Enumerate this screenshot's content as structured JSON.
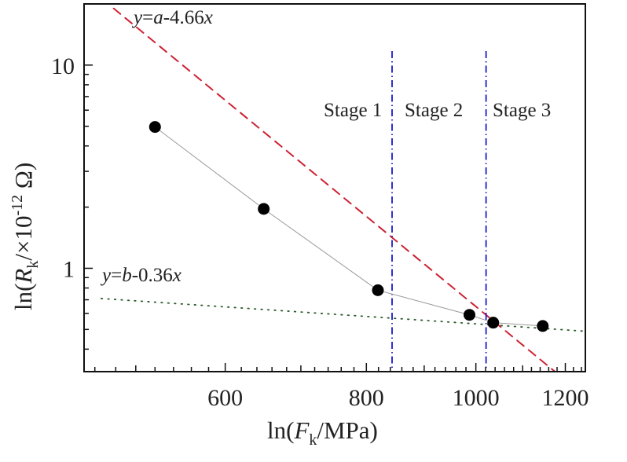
{
  "chart_data": {
    "type": "scatter",
    "title": "",
    "xlabel": "ln(F_k/MPa)",
    "xlabel_parts": {
      "pre": "ln(",
      "var": "F",
      "sub": "k",
      "post": "/MPa)"
    },
    "ylabel": "ln(R_k/×10^-12 Ω)",
    "ylabel_parts": {
      "pre": "ln(",
      "var": "R",
      "sub": "k",
      "mid": "/×10",
      "sup": "-12",
      "post": " Ω)"
    },
    "x_scale": "log",
    "y_scale": "log",
    "xlim": [
      450,
      1250
    ],
    "ylim": [
      0.31,
      20
    ],
    "x_ticks": [
      600,
      800,
      1000,
      1200
    ],
    "x_tick_labels": [
      "600",
      "800",
      "1000",
      "1200"
    ],
    "y_ticks": [
      1,
      10
    ],
    "y_tick_labels": [
      "1",
      "10"
    ],
    "grid": false,
    "series": [
      {
        "name": "data",
        "marker": "filled-circle",
        "color": "#000000",
        "line_color": "#999999",
        "x": [
          520,
          649,
          819,
          987,
          1036,
          1146
        ],
        "y": [
          4.96,
          1.96,
          0.78,
          0.59,
          0.54,
          0.52
        ]
      }
    ],
    "fit_lines": [
      {
        "name": "fit-steep",
        "label": "y=a-4.66x",
        "label_parts": {
          "y": "y",
          "eq": "=",
          "a": "a",
          "rest": "-4.66",
          "x": "x"
        },
        "style": "dashed",
        "color": "#cc2233",
        "x": [
          478,
          1175
        ],
        "y": [
          19.0,
          0.31
        ]
      },
      {
        "name": "fit-shallow",
        "label": "y=b-0.36x",
        "label_parts": {
          "y": "y",
          "eq": "=",
          "a": "b",
          "rest": "-0.36",
          "x": "x"
        },
        "style": "dotted",
        "color": "#2a5a2a",
        "x": [
          466,
          1250
        ],
        "y": [
          0.71,
          0.49
        ]
      }
    ],
    "stage_boundaries": [
      843,
      1021
    ],
    "stage_color": "#1a1acc",
    "annotations": [
      "Stage 1",
      "Stage 2",
      "Stage 3"
    ]
  }
}
